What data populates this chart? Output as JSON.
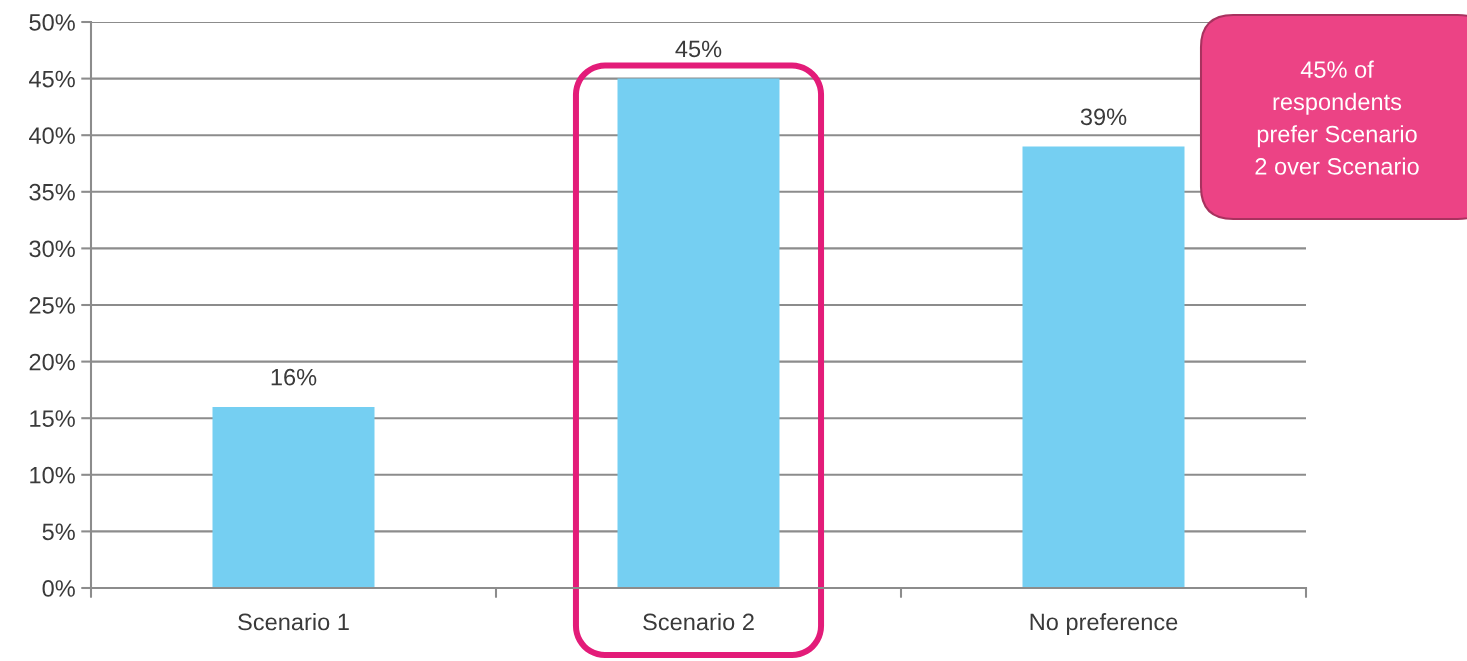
{
  "chart_data": {
    "type": "bar",
    "categories": [
      "Scenario 1",
      "Scenario 2",
      "No preference"
    ],
    "values": [
      16,
      45,
      39
    ],
    "value_labels": [
      "16%",
      "45%",
      "39%"
    ],
    "color": "#75cff2",
    "ylim": [
      0,
      50
    ],
    "yticks": [
      {
        "value": 0,
        "label": "0%"
      },
      {
        "value": 5,
        "label": "5%"
      },
      {
        "value": 10,
        "label": "10%"
      },
      {
        "value": 15,
        "label": "15%"
      },
      {
        "value": 20,
        "label": "20%"
      },
      {
        "value": 25,
        "label": "25%"
      },
      {
        "value": 30,
        "label": "30%"
      },
      {
        "value": 35,
        "label": "35%"
      },
      {
        "value": 40,
        "label": "40%"
      },
      {
        "value": 45,
        "label": "45%"
      },
      {
        "value": 50,
        "label": "50%"
      }
    ],
    "grid": "y",
    "bands": [
      {
        "axis": "x",
        "from": "Scenario 2",
        "to": "Scenario 2",
        "color": "#e31c79"
      }
    ],
    "annotations": [
      "45% of\nrespondents\nprefer Scenario\n2 over Scenario"
    ]
  }
}
